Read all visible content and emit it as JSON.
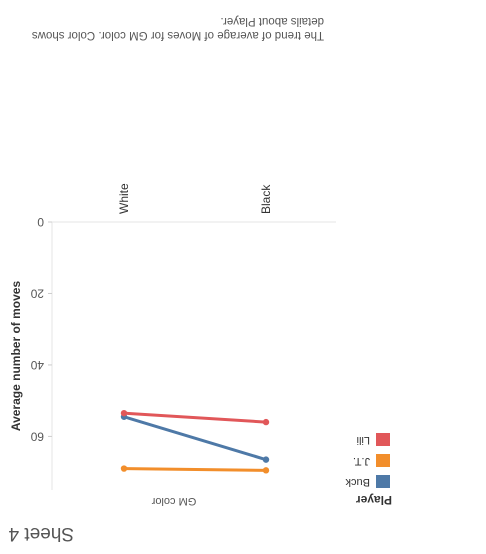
{
  "sheet": {
    "title": "Sheet 4",
    "caption": "The trend of average of Moves for GM color.  Color shows details about Player."
  },
  "legend": {
    "title": "Player",
    "items": [
      {
        "label": "Buck",
        "color": "#4e79a7"
      },
      {
        "label": "J.T.",
        "color": "#f28e2b"
      },
      {
        "label": "Lili",
        "color": "#e15759"
      }
    ]
  },
  "chart_data": {
    "type": "line",
    "categories": [
      "Black",
      "White"
    ],
    "xlabel": "GM color",
    "ylabel": "Average number of moves",
    "ylim": [
      0,
      75
    ],
    "yticks": [
      0,
      20,
      40,
      60
    ],
    "grid": false,
    "legend_position": "bottom-left",
    "series": [
      {
        "name": "Buck",
        "color": "#4e79a7",
        "values": [
          66.5,
          54.5
        ]
      },
      {
        "name": "J.T.",
        "color": "#f28e2b",
        "values": [
          69.5,
          69.0
        ]
      },
      {
        "name": "Lili",
        "color": "#e15759",
        "values": [
          56.0,
          53.5
        ]
      }
    ]
  }
}
